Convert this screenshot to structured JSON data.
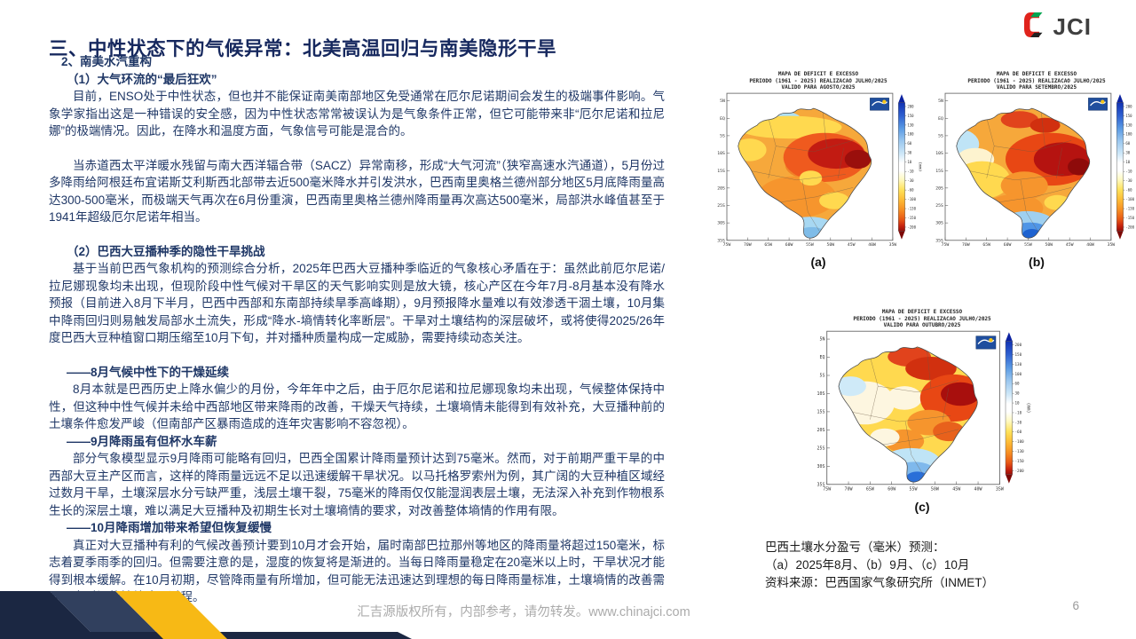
{
  "slide": {
    "title": "三、中性状态下的气候异常：北美高温回归与南美隐形干旱",
    "logo_text": "JCI",
    "footer": "汇吉源版权所有，内部参考，请勿转发。www.chinajci.com",
    "page_number": "6"
  },
  "body": {
    "blocks": [
      {
        "style": "h2",
        "text": "2、南美水汽重构"
      },
      {
        "style": "h3",
        "text": "（1）大气环流的“最后狂欢”"
      },
      {
        "style": "p",
        "text": "目前，ENSO处于中性状态，但也并不能保证南美南部地区免受通常在厄尔尼诺期间会发生的极端事件影响。气象学家指出这是一种错误的安全感，因为中性状态常常被误认为是气象条件正常，但它可能带来非“厄尔尼诺和拉尼娜”的极端情况。因此，在降水和温度方面，气象信号可能是混合的。"
      },
      {
        "style": "gap"
      },
      {
        "style": "p",
        "text": "当赤道西太平洋暖水残留与南大西洋辐合带（SACZ）异常南移，形成“大气河流”（狭窄高速水汽通道），5月份过多降雨给阿根廷布宜诺斯艾利斯西北部带去近500毫米降水并引发洪水，巴西南里奥格兰德州部分地区5月底降雨量高达300-500毫米，而极端天气再次在6月份重演，巴西南里奥格兰德州降雨量再次高达500毫米，局部洪水峰值甚至于1941年超级厄尔尼诺年相当。"
      },
      {
        "style": "gap"
      },
      {
        "style": "h3",
        "text": "（2）巴西大豆播种季的隐性干旱挑战"
      },
      {
        "style": "p",
        "text": "基于当前巴西气象机构的预测综合分析，2025年巴西大豆播种季临近的气象核心矛盾在于：虽然此前厄尔尼诺/拉尼娜现象均未出现，但现阶段中性气候对干旱区的天气影响实则是放大镜，核心产区在今年7月-8月基本没有降水预报（目前进入8月下半月，巴西中西部和东南部持续旱季高峰期），9月预报降水量难以有效渗透干涸土壤，10月集中降雨回归则易触发局部水土流失，形成“降水-墒情转化率断层”。干旱对土壤结构的深层破坏，或将使得2025/26年度巴西大豆种植窗口期压缩至10月下旬，并对播种质量构成一定威胁，需要持续动态关注。"
      },
      {
        "style": "gap"
      },
      {
        "style": "h4",
        "text": "——8月气候中性下的干燥延续"
      },
      {
        "style": "p",
        "text": "8月本就是巴西历史上降水偏少的月份，今年年中之后，由于厄尔尼诺和拉尼娜现象均未出现，气候整体保持中性，但这种中性气候并未给中西部地区带来降雨的改善，干燥天气持续，土壤墒情未能得到有效补充，大豆播种前的土壤条件愈发严峻（但南部产区暴雨造成的连年灾害影响不容忽视）。"
      },
      {
        "style": "h4",
        "text": "——9月降雨虽有但杯水车薪"
      },
      {
        "style": "p",
        "text": "部分气象模型显示9月降雨可能略有回归，巴西全国累计降雨量预计达到75毫米。然而，对于前期严重干旱的中西部大豆主产区而言，这样的降雨量远远不足以迅速缓解干旱状况。以马托格罗索州为例，其广阔的大豆种植区域经过数月干旱，土壤深层水分亏缺严重，浅层土壤干裂，75毫米的降雨仅仅能湿润表层土壤，无法深入补充到作物根系生长的深层土壤，难以满足大豆播种及初期生长对土壤墒情的要求，对改善整体墒情的作用有限。"
      },
      {
        "style": "h4",
        "text": "——10月降雨增加带来希望但恢复缓慢"
      },
      {
        "style": "p",
        "text": "真正对大豆播种有利的气候改善预计要到10月才会开始，届时南部巴拉那州等地区的降雨量将超过150毫米，标志着夏季雨季的回归。但需要注意的是，湿度的恢复将是渐进的。当每日降雨量稳定在20毫米以上时，干旱状况才能得到根本缓解。在10月初期，尽管降雨量有所增加，但可能无法迅速达到理想的每日降雨量标准，土壤墒情的改善需要一定时间的持续降雨过程。"
      }
    ]
  },
  "figures": {
    "maps": [
      {
        "label": "(a)",
        "title_line1": "MAPA DE DEFICIT E EXCESSO",
        "title_line2": "PERIODO (1961 - 2025) REALIZACAO JULHO/2025",
        "title_line3": "VALIDO PARA AGOSTO/2025"
      },
      {
        "label": "(b)",
        "title_line1": "MAPA DE DEFICIT E EXCESSO",
        "title_line2": "PERIODO (1961 - 2025) REALIZACAO JULHO/2025",
        "title_line3": "VALIDO PARA SETEMBRO/2025"
      },
      {
        "label": "(c)",
        "title_line1": "MAPA DE DEFICIT E EXCESSO",
        "title_line2": "PERIODO (1961 - 2025) REALIZACAO JULHO/2025",
        "title_line3": "VALIDO PARA OUTUBRO/2025"
      }
    ],
    "axis": {
      "lat": [
        "5N",
        "EQ",
        "5S",
        "10S",
        "15S",
        "20S",
        "25S",
        "30S",
        "35S"
      ],
      "lon": [
        "75W",
        "70W",
        "65W",
        "60W",
        "55W",
        "50W",
        "45W",
        "40W",
        "35W"
      ]
    },
    "legend": {
      "ticks": [
        "200",
        "150",
        "130",
        "100",
        "60",
        "30",
        "10",
        "-10",
        "-30",
        "-60",
        "-100",
        "-130",
        "-150",
        "-200"
      ],
      "unit": "(mm)"
    },
    "caption_line1": "巴西土壤水分盈亏（毫米）预测：",
    "caption_line2": "（a）2025年8月、（b）9月、（c）10月",
    "caption_line3": "资料来源：巴西国家气象研究所（INMET）"
  },
  "colors": {
    "title_navy": "#16285E",
    "body_navy": "#1F3766",
    "corner_navy": "#1B2742",
    "corner_slate": "#31405E",
    "accent_yellow": "#F7B915",
    "logo_red": "#E0231C",
    "logo_green": "#00A651",
    "footer_gray": "#ABABAB"
  }
}
